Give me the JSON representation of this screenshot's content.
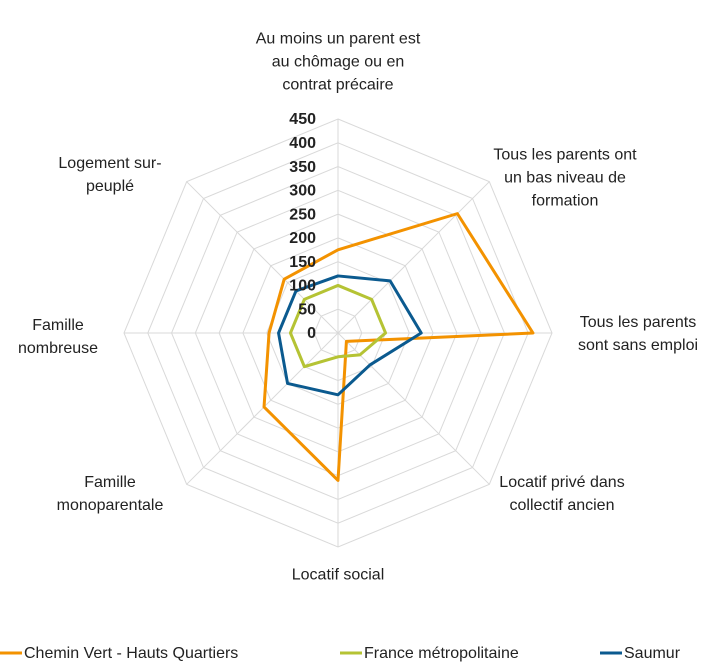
{
  "chart_data": {
    "type": "radar",
    "categories": [
      "Au moins un parent est au chômage ou en contrat précaire",
      "Tous les parents ont un bas niveau de formation",
      "Tous les parents sont sans emploi",
      "Locatif privé dans collectif ancien",
      "Locatif social",
      "Famille monoparentale",
      "Famille nombreuse",
      "Logement sur-peuplé"
    ],
    "series": [
      {
        "name": "Chemin Vert - Hauts Quartiers",
        "color": "#f39200",
        "values": [
          175,
          355,
          410,
          25,
          310,
          220,
          145,
          160
        ]
      },
      {
        "name": "France métropolitaine",
        "color": "#b5c334",
        "values": [
          100,
          100,
          100,
          65,
          50,
          100,
          100,
          100
        ]
      },
      {
        "name": "Saumur",
        "color": "#0b5a8f",
        "values": [
          120,
          155,
          175,
          95,
          130,
          150,
          125,
          125
        ]
      }
    ],
    "ylim": [
      0,
      450
    ],
    "yticks": [
      0,
      50,
      100,
      150,
      200,
      250,
      300,
      350,
      400,
      450
    ],
    "grid": true,
    "legend": "bottom"
  }
}
